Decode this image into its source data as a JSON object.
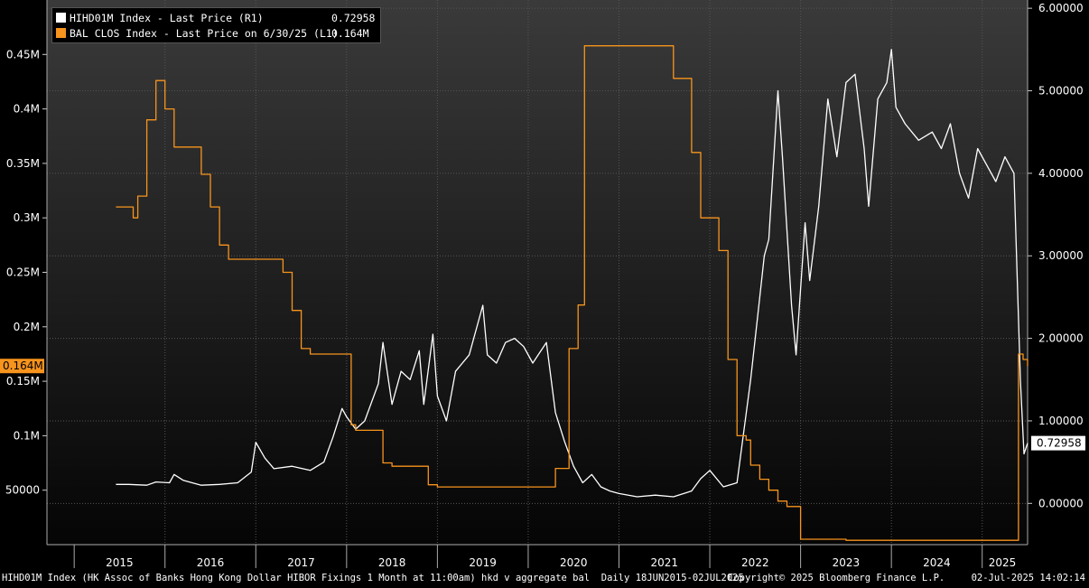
{
  "legend": [
    {
      "swatch_color": "#ffffff",
      "label": "HIHD01M Index - Last Price (R1)",
      "value": "0.72958"
    },
    {
      "swatch_color": "#f7941d",
      "label": "BAL CLOS Index - Last Price on 6/30/25 (L1)",
      "value": "0.164M"
    }
  ],
  "footer": {
    "description": "HIHD01M Index (HK Assoc of Banks Hong Kong Dollar HIBOR Fixings 1 Month at 11:00am) hkd v aggregate bal  Daily 18JUN2015-02JUL2025",
    "copyright": "Copyright© 2025 Bloomberg Finance L.P.",
    "timestamp": "02-Jul-2025 14:02:14"
  },
  "colors": {
    "background": "#000000",
    "hibor_line": "#ffffff",
    "balance_line": "#f7941d",
    "grid": "#555555"
  },
  "chart_data": {
    "type": "line",
    "x_tick_labels": [
      "2015",
      "2016",
      "2017",
      "2018",
      "2019",
      "2020",
      "2021",
      "2022",
      "2023",
      "2024",
      "2025"
    ],
    "x_tick_years": [
      2015,
      2016,
      2017,
      2018,
      2019,
      2020,
      2021,
      2022,
      2023,
      2024,
      2025
    ],
    "xlim": [
      2014.7,
      2025.5
    ],
    "left_axis": {
      "ylim": [
        0,
        500000
      ],
      "tick_values": [
        50000,
        100000,
        150000,
        200000,
        250000,
        300000,
        350000,
        400000,
        450000
      ],
      "tick_labels": [
        "50000",
        "0.1M",
        "0.15M",
        "0.2M",
        "0.25M",
        "0.3M",
        "0.35M",
        "0.4M",
        "0.45M"
      ],
      "last_value_tag": "0.164M"
    },
    "right_axis": {
      "ylim": [
        -0.5,
        6.1
      ],
      "tick_values": [
        0,
        1,
        2,
        3,
        4,
        5,
        6
      ],
      "tick_labels": [
        "0.00000",
        "1.00000",
        "2.00000",
        "3.00000",
        "4.00000",
        "5.00000",
        "6.00000"
      ],
      "last_value_tag": "0.72958"
    },
    "series": [
      {
        "name": "HIHD01M Index - Last Price (R1)",
        "axis": "right",
        "points": [
          [
            2015.46,
            0.23
          ],
          [
            2015.6,
            0.23
          ],
          [
            2015.8,
            0.22
          ],
          [
            2015.9,
            0.26
          ],
          [
            2016.05,
            0.25
          ],
          [
            2016.1,
            0.35
          ],
          [
            2016.2,
            0.28
          ],
          [
            2016.4,
            0.22
          ],
          [
            2016.6,
            0.23
          ],
          [
            2016.8,
            0.25
          ],
          [
            2016.95,
            0.38
          ],
          [
            2017.0,
            0.74
          ],
          [
            2017.1,
            0.55
          ],
          [
            2017.2,
            0.42
          ],
          [
            2017.4,
            0.45
          ],
          [
            2017.6,
            0.4
          ],
          [
            2017.75,
            0.5
          ],
          [
            2017.85,
            0.8
          ],
          [
            2017.95,
            1.15
          ],
          [
            2018.0,
            1.05
          ],
          [
            2018.1,
            0.9
          ],
          [
            2018.2,
            1.0
          ],
          [
            2018.35,
            1.45
          ],
          [
            2018.4,
            1.95
          ],
          [
            2018.5,
            1.2
          ],
          [
            2018.6,
            1.6
          ],
          [
            2018.7,
            1.5
          ],
          [
            2018.8,
            1.85
          ],
          [
            2018.85,
            1.2
          ],
          [
            2018.95,
            2.05
          ],
          [
            2019.0,
            1.3
          ],
          [
            2019.1,
            1.0
          ],
          [
            2019.2,
            1.6
          ],
          [
            2019.35,
            1.8
          ],
          [
            2019.5,
            2.4
          ],
          [
            2019.55,
            1.8
          ],
          [
            2019.65,
            1.7
          ],
          [
            2019.75,
            1.95
          ],
          [
            2019.85,
            2.0
          ],
          [
            2019.95,
            1.9
          ],
          [
            2020.05,
            1.7
          ],
          [
            2020.2,
            1.95
          ],
          [
            2020.3,
            1.1
          ],
          [
            2020.4,
            0.75
          ],
          [
            2020.5,
            0.45
          ],
          [
            2020.6,
            0.25
          ],
          [
            2020.7,
            0.35
          ],
          [
            2020.8,
            0.2
          ],
          [
            2020.9,
            0.15
          ],
          [
            2021.0,
            0.12
          ],
          [
            2021.2,
            0.08
          ],
          [
            2021.4,
            0.1
          ],
          [
            2021.6,
            0.08
          ],
          [
            2021.8,
            0.15
          ],
          [
            2021.9,
            0.3
          ],
          [
            2022.0,
            0.4
          ],
          [
            2022.15,
            0.2
          ],
          [
            2022.3,
            0.25
          ],
          [
            2022.45,
            1.5
          ],
          [
            2022.55,
            2.5
          ],
          [
            2022.6,
            3.0
          ],
          [
            2022.65,
            3.2
          ],
          [
            2022.75,
            5.0
          ],
          [
            2022.8,
            4.2
          ],
          [
            2022.9,
            2.4
          ],
          [
            2022.95,
            1.8
          ],
          [
            2023.05,
            3.4
          ],
          [
            2023.1,
            2.7
          ],
          [
            2023.2,
            3.6
          ],
          [
            2023.3,
            4.9
          ],
          [
            2023.4,
            4.2
          ],
          [
            2023.5,
            5.1
          ],
          [
            2023.6,
            5.2
          ],
          [
            2023.7,
            4.3
          ],
          [
            2023.75,
            3.6
          ],
          [
            2023.85,
            4.9
          ],
          [
            2023.95,
            5.1
          ],
          [
            2024.0,
            5.5
          ],
          [
            2024.05,
            4.8
          ],
          [
            2024.15,
            4.6
          ],
          [
            2024.3,
            4.4
          ],
          [
            2024.45,
            4.5
          ],
          [
            2024.55,
            4.3
          ],
          [
            2024.65,
            4.6
          ],
          [
            2024.75,
            4.0
          ],
          [
            2024.85,
            3.7
          ],
          [
            2024.95,
            4.3
          ],
          [
            2025.05,
            4.1
          ],
          [
            2025.15,
            3.9
          ],
          [
            2025.25,
            4.2
          ],
          [
            2025.35,
            4.0
          ],
          [
            2025.42,
            1.5
          ],
          [
            2025.46,
            0.6
          ],
          [
            2025.5,
            0.73
          ]
        ]
      },
      {
        "name": "BAL CLOS Index - Last Price on 6/30/25 (L1)",
        "axis": "left",
        "points": [
          [
            2015.46,
            310000
          ],
          [
            2015.6,
            310000
          ],
          [
            2015.65,
            300000
          ],
          [
            2015.7,
            320000
          ],
          [
            2015.8,
            390000
          ],
          [
            2015.9,
            426000
          ],
          [
            2016.0,
            400000
          ],
          [
            2016.1,
            365000
          ],
          [
            2016.3,
            365000
          ],
          [
            2016.4,
            340000
          ],
          [
            2016.5,
            310000
          ],
          [
            2016.6,
            275000
          ],
          [
            2016.7,
            262000
          ],
          [
            2017.2,
            262000
          ],
          [
            2017.3,
            250000
          ],
          [
            2017.4,
            215000
          ],
          [
            2017.5,
            180000
          ],
          [
            2017.6,
            175000
          ],
          [
            2018.0,
            175000
          ],
          [
            2018.05,
            110000
          ],
          [
            2018.1,
            105000
          ],
          [
            2018.35,
            105000
          ],
          [
            2018.4,
            75000
          ],
          [
            2018.5,
            72000
          ],
          [
            2018.8,
            72000
          ],
          [
            2018.9,
            55000
          ],
          [
            2019.0,
            53000
          ],
          [
            2019.8,
            53000
          ],
          [
            2020.0,
            53000
          ],
          [
            2020.2,
            53000
          ],
          [
            2020.3,
            70000
          ],
          [
            2020.45,
            180000
          ],
          [
            2020.55,
            220000
          ],
          [
            2020.62,
            458000
          ],
          [
            2021.0,
            458000
          ],
          [
            2021.4,
            458000
          ],
          [
            2021.6,
            428000
          ],
          [
            2021.8,
            360000
          ],
          [
            2021.9,
            300000
          ],
          [
            2022.0,
            300000
          ],
          [
            2022.1,
            270000
          ],
          [
            2022.2,
            170000
          ],
          [
            2022.3,
            100000
          ],
          [
            2022.4,
            96000
          ],
          [
            2022.45,
            73000
          ],
          [
            2022.55,
            60000
          ],
          [
            2022.65,
            50000
          ],
          [
            2022.75,
            40000
          ],
          [
            2022.85,
            35000
          ],
          [
            2022.95,
            35000
          ],
          [
            2023.0,
            5000
          ],
          [
            2023.5,
            4000
          ],
          [
            2024.0,
            4000
          ],
          [
            2024.5,
            4000
          ],
          [
            2025.0,
            4000
          ],
          [
            2025.35,
            4000
          ],
          [
            2025.4,
            175000
          ],
          [
            2025.45,
            170000
          ],
          [
            2025.5,
            164000
          ]
        ]
      }
    ]
  }
}
